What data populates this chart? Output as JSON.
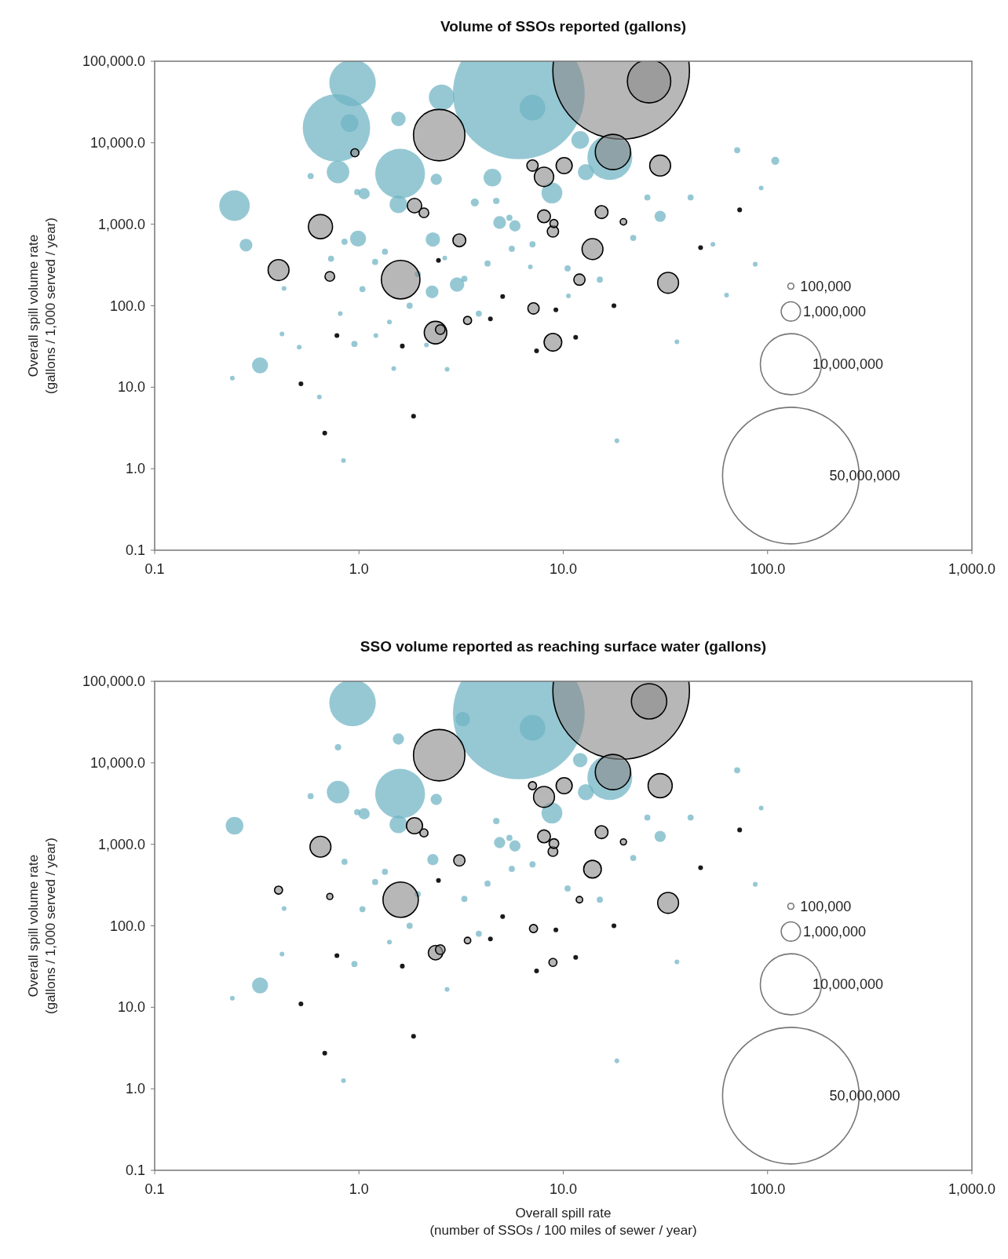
{
  "chart_data": [
    {
      "type": "bubble",
      "title": "Volume of SSOs reported (gallons)",
      "ylabel": "Overall spill volume rate\n(gallons / 1,000 served / year)",
      "log": "xy",
      "xlim": [
        0.1,
        1000
      ],
      "xticks": [
        {
          "value": 0.1,
          "label": "0.1"
        },
        {
          "value": 1,
          "label": "1.0"
        },
        {
          "value": 10,
          "label": "10.0"
        },
        {
          "value": 100,
          "label": "100.0"
        },
        {
          "value": 1000,
          "label": "1,000.0"
        }
      ],
      "ylim": [
        0.1,
        100000
      ],
      "yticks": [
        {
          "value": 0.1,
          "label": "0.1"
        },
        {
          "value": 1,
          "label": "1.0"
        },
        {
          "value": 10,
          "label": "10.0"
        },
        {
          "value": 100,
          "label": "100.0"
        },
        {
          "value": 1000,
          "label": "1,000.0"
        },
        {
          "value": 10000,
          "label": "10,000.0"
        },
        {
          "value": 100000,
          "label": "100,000.0"
        }
      ],
      "size_legend": [
        {
          "value": 100000,
          "label": "100,000"
        },
        {
          "value": 1000000,
          "label": "1,000,000"
        },
        {
          "value": 10000000,
          "label": "10,000,000"
        },
        {
          "value": 50000000,
          "label": "50,000,000"
        }
      ],
      "series": [
        {
          "color": "#6db3c3",
          "x": [
            6.06,
            0.776,
            0.93,
            1.59,
            16.9,
            0.246,
            2.54,
            7.07,
            0.79,
            8.8,
            0.9,
            4.5,
            12.1,
            1.56,
            0.328,
            0.99,
            12.9,
            2.3,
            1.56,
            3.02,
            0.28,
            4.88,
            2.28,
            5.8,
            29.8,
            2.39,
            1.06,
            3.69,
            109,
            0.58,
            0.98,
            0.85,
            0.73,
            1.2,
            1.34,
            1.04,
            0.81,
            0.95,
            1.77,
            1.94,
            1.21,
            1.48,
            0.43,
            0.42,
            0.64,
            0.51,
            2.7,
            3.86,
            4.26,
            5.6,
            4.7,
            6.9,
            10.5,
            15.1,
            22,
            25.8,
            42,
            54,
            71,
            93,
            87,
            63,
            36,
            18.3,
            0.84,
            0.24,
            5.45,
            7.07,
            10.6,
            1.41,
            2.14,
            3.28,
            2.63
          ],
          "values": [
            40400,
            15200,
            54200,
            4170,
            6580,
            1690,
            36000,
            26900,
            4370,
            2420,
            17400,
            3730,
            10800,
            1760,
            18.5,
            665,
            4370,
            650,
            19600,
            182,
            554,
            1050,
            148,
            955,
            1250,
            3550,
            2370,
            1850,
            6000,
            3900,
            2480,
            610,
            378,
            345,
            460,
            160,
            80,
            34,
            100,
            245,
            43,
            17,
            163,
            45,
            7.6,
            31,
            16.6,
            80,
            330,
            500,
            1930,
            300,
            287,
            209,
            680,
            2130,
            2130,
            567,
            8100,
            2780,
            323,
            135,
            36,
            2.2,
            1.26,
            12.9,
            1200,
            567,
            132,
            63,
            33,
            214,
            385
          ],
          "sizes": [
            46500000,
            12200000,
            5800000,
            6650000,
            5400000,
            2500000,
            1770000,
            1770000,
            1360000,
            1170000,
            840000,
            840000,
            840000,
            840000,
            690000,
            690000,
            690000,
            560000,
            560000,
            560000,
            440000,
            440000,
            440000,
            340000,
            340000,
            340000,
            340000,
            173000,
            173000,
            100000,
            100000,
            100000,
            100000,
            100000,
            100000,
            100000,
            60000,
            100000,
            100000,
            100000,
            60000,
            60000,
            60000,
            60000,
            60000,
            60000,
            60000,
            100000,
            100000,
            100000,
            111000,
            60000,
            100000,
            100000,
            100000,
            100000,
            100000,
            60000,
            100000,
            60000,
            60000,
            60000,
            60000,
            60000,
            60000,
            60000,
            100000,
            100000,
            60000,
            60000,
            60000,
            100000,
            60000
          ]
        },
        {
          "color": "#8a8a8a",
          "x": [
            19.2,
            2.47,
            26.3,
            1.6,
            17.5,
            0.648,
            2.37,
            0.404,
            29.8,
            32.6,
            13.9,
            8.05,
            8.9,
            10.1,
            1.87,
            3.1,
            8.05,
            15.4,
            8.9,
            7.07,
            12,
            7.15,
            0.72,
            2.08,
            2.5,
            0.955,
            3.4,
            9.0,
            19.7
          ],
          "values": [
            76200,
            12400,
            56800,
            209,
            7700,
            934,
            46.8,
            274,
            5240,
            191,
            495,
            3810,
            35.6,
            5240,
            1690,
            635,
            1250,
            1410,
            815,
            5240,
            209,
            92.6,
            229,
            1380,
            51,
            7530,
            66,
            1020,
            1070
          ],
          "sizes": [
            50000000,
            7090000,
            5040000,
            3990000,
            3350000,
            1560000,
            1360000,
            1170000,
            1170000,
            1170000,
            1170000,
            997000,
            837000,
            692000,
            560000,
            443000,
            443000,
            443000,
            339000,
            339000,
            339000,
            339000,
            249000,
            249000,
            249000,
            173000,
            173000,
            173000,
            111000
          ]
        },
        {
          "color": "#1a1a1a",
          "x": [
            0.68,
            0.52,
            1.85,
            7.4,
            17.7,
            11.5,
            73,
            47,
            5.05,
            9.2,
            4.4,
            1.63,
            2.45,
            0.78
          ],
          "values": [
            2.74,
            11,
            4.4,
            28,
            100,
            41,
            1500,
            515,
            130,
            89,
            69,
            32,
            360,
            43
          ],
          "sizes": [
            60000,
            60000,
            60000,
            60000,
            60000,
            60000,
            60000,
            60000,
            60000,
            60000,
            60000,
            60000,
            60000,
            60000
          ]
        }
      ]
    },
    {
      "type": "bubble",
      "title": "SSO volume reported as reaching surface water (gallons)",
      "xlabel": "Overall spill rate\n(number of SSOs / 100 miles of sewer / year)",
      "ylabel": "Overall spill volume rate\n(gallons / 1,000 served / year)",
      "log": "xy",
      "xlim": [
        0.1,
        1000
      ],
      "xticks": [
        {
          "value": 0.1,
          "label": "0.1"
        },
        {
          "value": 1,
          "label": "1.0"
        },
        {
          "value": 10,
          "label": "10.0"
        },
        {
          "value": 100,
          "label": "100.0"
        },
        {
          "value": 1000,
          "label": "1,000.0"
        }
      ],
      "ylim": [
        0.1,
        100000
      ],
      "yticks": [
        {
          "value": 0.1,
          "label": "0.1"
        },
        {
          "value": 1,
          "label": "1.0"
        },
        {
          "value": 10,
          "label": "10.0"
        },
        {
          "value": 100,
          "label": "100.0"
        },
        {
          "value": 1000,
          "label": "1,000.0"
        },
        {
          "value": 10000,
          "label": "10,000.0"
        },
        {
          "value": 100000,
          "label": "100,000.0"
        }
      ],
      "size_legend": [
        {
          "value": 100000,
          "label": "100,000"
        },
        {
          "value": 1000000,
          "label": "1,000,000"
        },
        {
          "value": 10000000,
          "label": "10,000,000"
        },
        {
          "value": 50000000,
          "label": "50,000,000"
        }
      ],
      "series": [
        {
          "color": "#6db3c3",
          "x": [
            6.06,
            0.93,
            1.59,
            16.9,
            0.246,
            7.07,
            0.79,
            8.8,
            12.1,
            1.56,
            0.328,
            12.9,
            2.3,
            1.56,
            4.88,
            5.8,
            29.8,
            2.39,
            1.06,
            3.22,
            0.79,
            0.58,
            0.98,
            0.85,
            1.2,
            1.34,
            1.04,
            0.95,
            1.77,
            1.94,
            0.43,
            0.42,
            2.7,
            3.86,
            4.26,
            5.6,
            4.7,
            10.5,
            15.1,
            22,
            25.8,
            42,
            71,
            93,
            87,
            36,
            18.3,
            0.84,
            0.24,
            5.45,
            7.07,
            1.41,
            3.28
          ],
          "values": [
            40400,
            54200,
            4170,
            6580,
            1690,
            26900,
            4370,
            2420,
            10800,
            1760,
            18.5,
            4370,
            650,
            19600,
            1050,
            955,
            1250,
            3550,
            2370,
            34400,
            15500,
            3900,
            2480,
            610,
            345,
            460,
            160,
            34,
            100,
            245,
            163,
            45,
            16.6,
            80,
            330,
            500,
            1930,
            287,
            209,
            680,
            2130,
            2130,
            8100,
            2780,
            323,
            36,
            2.2,
            1.26,
            12.9,
            1200,
            567,
            63,
            214
          ],
          "sizes": [
            46500000,
            5800000,
            6650000,
            5400000,
            840000,
            1770000,
            1360000,
            1170000,
            560000,
            840000,
            690000,
            690000,
            339000,
            339000,
            339000,
            339000,
            339000,
            339000,
            339000,
            560000,
            111000,
            100000,
            100000,
            100000,
            100000,
            100000,
            100000,
            100000,
            100000,
            100000,
            60000,
            60000,
            60000,
            100000,
            100000,
            100000,
            111000,
            100000,
            100000,
            100000,
            100000,
            100000,
            100000,
            60000,
            60000,
            60000,
            60000,
            60000,
            60000,
            100000,
            100000,
            60000,
            100000
          ]
        },
        {
          "color": "#8a8a8a",
          "x": [
            19.2,
            2.47,
            26.3,
            1.6,
            17.5,
            0.648,
            2.37,
            0.404,
            29.8,
            32.6,
            13.9,
            8.05,
            8.9,
            10.1,
            1.87,
            3.1,
            8.05,
            15.4,
            8.9,
            7.07,
            12,
            7.15,
            0.72,
            2.08,
            2.5,
            3.4,
            9.0,
            19.7
          ],
          "values": [
            76200,
            12400,
            56800,
            209,
            7700,
            934,
            46.8,
            274,
            5240,
            191,
            495,
            3810,
            35.6,
            5240,
            1690,
            635,
            1250,
            1410,
            815,
            5240,
            209,
            92.6,
            229,
            1380,
            51,
            66,
            1020,
            1070
          ],
          "sizes": [
            50000000,
            7090000,
            3350000,
            3350000,
            3350000,
            1170000,
            560000,
            173000,
            1560000,
            1170000,
            837000,
            1170000,
            173000,
            692000,
            692000,
            339000,
            443000,
            443000,
            249000,
            173000,
            111000,
            173000,
            100000,
            173000,
            249000,
            111000,
            249000,
            100000
          ]
        },
        {
          "color": "#1a1a1a",
          "x": [
            0.68,
            0.52,
            1.85,
            7.4,
            17.7,
            11.5,
            73,
            47,
            5.05,
            9.2,
            4.4,
            1.63,
            2.45,
            0.78
          ],
          "values": [
            2.74,
            11,
            4.4,
            28,
            100,
            41,
            1500,
            515,
            130,
            89,
            69,
            32,
            360,
            43
          ],
          "sizes": [
            60000,
            60000,
            60000,
            60000,
            60000,
            60000,
            60000,
            60000,
            60000,
            60000,
            60000,
            60000,
            60000,
            60000
          ]
        }
      ]
    }
  ]
}
